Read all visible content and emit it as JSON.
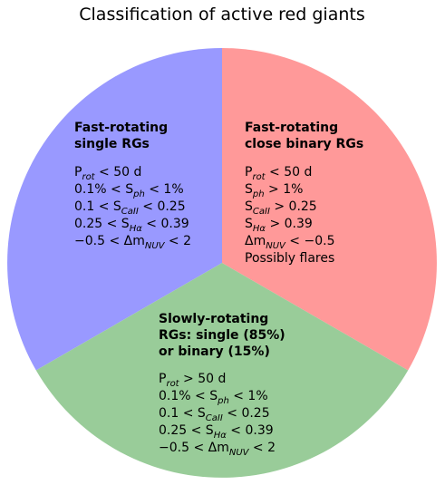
{
  "title": "Classification of active red giants",
  "sectors": [
    {
      "heading": [
        "Fast-rotating",
        "single RGs"
      ],
      "criteria": [
        [
          "P",
          "rot",
          " < 50 d"
        ],
        [
          "0.1% < S",
          "ph",
          " < 1%"
        ],
        [
          "0.1 < S",
          "CaII",
          " < 0.25"
        ],
        [
          "0.25 < S",
          "Hα",
          " < 0.39"
        ],
        [
          "−0.5 < Δm",
          "NUV",
          " < 2"
        ]
      ]
    },
    {
      "heading": [
        "Fast-rotating",
        "close binary RGs"
      ],
      "criteria": [
        [
          "P",
          "rot",
          " < 50 d"
        ],
        [
          "S",
          "ph",
          " > 1%"
        ],
        [
          "S",
          "CaII",
          " > 0.25"
        ],
        [
          "S",
          "Hα",
          " > 0.39"
        ],
        [
          "Δm",
          "NUV",
          " < −0.5"
        ],
        [
          "Possibly flares"
        ]
      ]
    },
    {
      "heading": [
        "Slowly-rotating",
        "RGs: single (85%)",
        "or binary (15%)"
      ],
      "criteria": [
        [
          "P",
          "rot",
          " > 50 d"
        ],
        [
          "0.1% < S",
          "ph",
          " < 1%"
        ],
        [
          "0.1 < S",
          "CaII",
          " < 0.25"
        ],
        [
          "0.25 < S",
          "Hα",
          " < 0.39"
        ],
        [
          "−0.5 < Δm",
          "NUV",
          " < 2"
        ]
      ]
    }
  ]
}
